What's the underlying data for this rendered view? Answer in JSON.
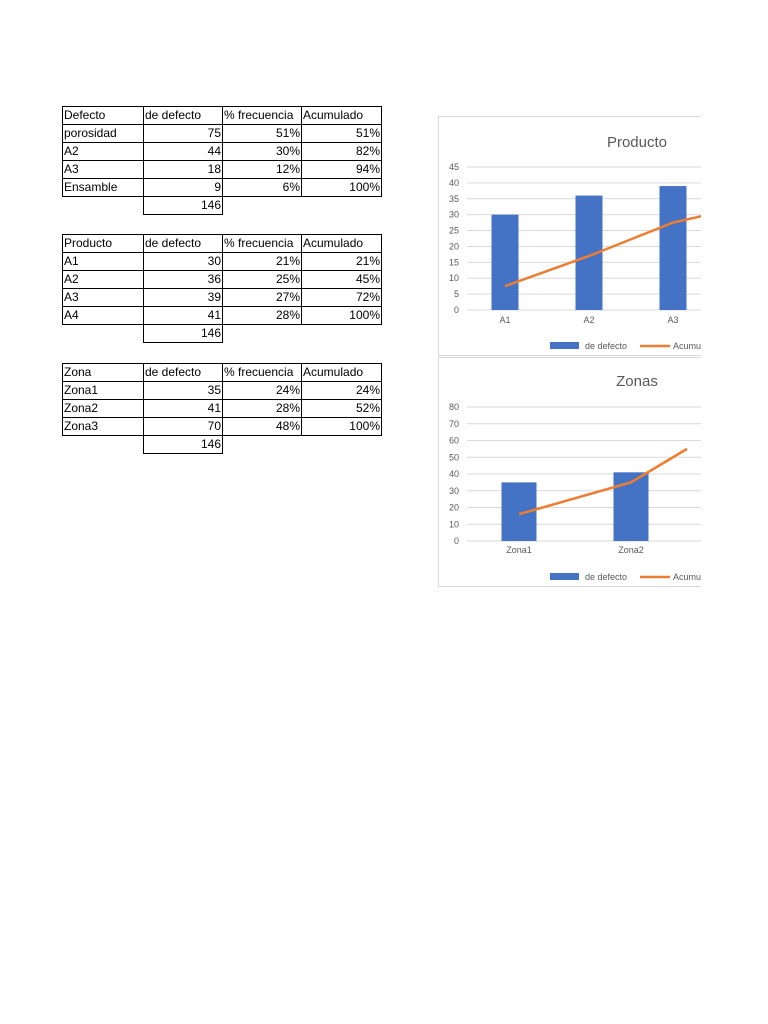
{
  "tables": [
    {
      "headers": [
        "Defecto",
        "de defecto",
        "% frecuencia",
        "Acumulado"
      ],
      "rows": [
        [
          "porosidad",
          "75",
          "51%",
          "51%"
        ],
        [
          "A2",
          "44",
          "30%",
          "82%"
        ],
        [
          "A3",
          "18",
          "12%",
          "94%"
        ],
        [
          "Ensamble",
          "9",
          "6%",
          "100%"
        ]
      ],
      "total": "146"
    },
    {
      "headers": [
        "Producto",
        "de defecto",
        "% frecuencia",
        "Acumulado"
      ],
      "rows": [
        [
          "A1",
          "30",
          "21%",
          "21%"
        ],
        [
          "A2",
          "36",
          "25%",
          "45%"
        ],
        [
          "A3",
          "39",
          "27%",
          "72%"
        ],
        [
          "A4",
          "41",
          "28%",
          "100%"
        ]
      ],
      "total": "146"
    },
    {
      "headers": [
        "Zona",
        "de defecto",
        "% frecuencia",
        "Acumulado"
      ],
      "rows": [
        [
          "Zona1",
          "35",
          "24%",
          "24%"
        ],
        [
          "Zona2",
          "41",
          "28%",
          "52%"
        ],
        [
          "Zona3",
          "70",
          "48%",
          "100%"
        ]
      ],
      "total": "146"
    }
  ],
  "colors": {
    "bar": "#4472C4",
    "line": "#ED7D31",
    "grid": "#d9d9d9",
    "axis_text": "#595959"
  },
  "chart_data": [
    {
      "type": "bar",
      "title": "Producto",
      "categories": [
        "A1",
        "A2",
        "A3"
      ],
      "ylim": [
        0,
        45
      ],
      "yticks": [
        0,
        5,
        10,
        15,
        20,
        25,
        30,
        35,
        40,
        45
      ],
      "grid": true,
      "legend_position": "bottom",
      "series": [
        {
          "name": "de defecto",
          "kind": "bar",
          "values": [
            30,
            36,
            39
          ]
        },
        {
          "name": "Acumu",
          "kind": "line",
          "values": [
            7.5,
            17,
            27.5
          ],
          "end_value": 30.5
        }
      ]
    },
    {
      "type": "bar",
      "title": "Zonas",
      "categories": [
        "Zona1",
        "Zona2"
      ],
      "ylim": [
        0,
        80
      ],
      "yticks": [
        0,
        10,
        20,
        30,
        40,
        50,
        60,
        70,
        80
      ],
      "grid": true,
      "legend_position": "bottom",
      "series": [
        {
          "name": "de defecto",
          "kind": "bar",
          "values": [
            35,
            41
          ]
        },
        {
          "name": "Acumu",
          "kind": "line",
          "values": [
            16,
            35
          ],
          "end_value": 55
        }
      ]
    }
  ]
}
